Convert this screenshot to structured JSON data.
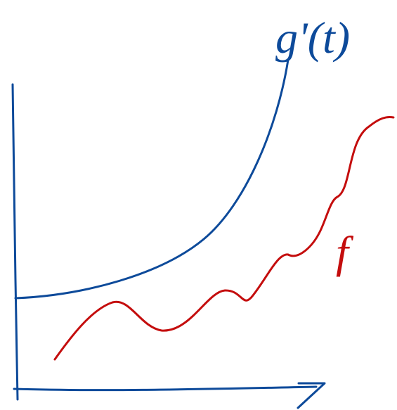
{
  "labels": {
    "blue_curve": "g'(t)",
    "red_curve": "f"
  }
}
